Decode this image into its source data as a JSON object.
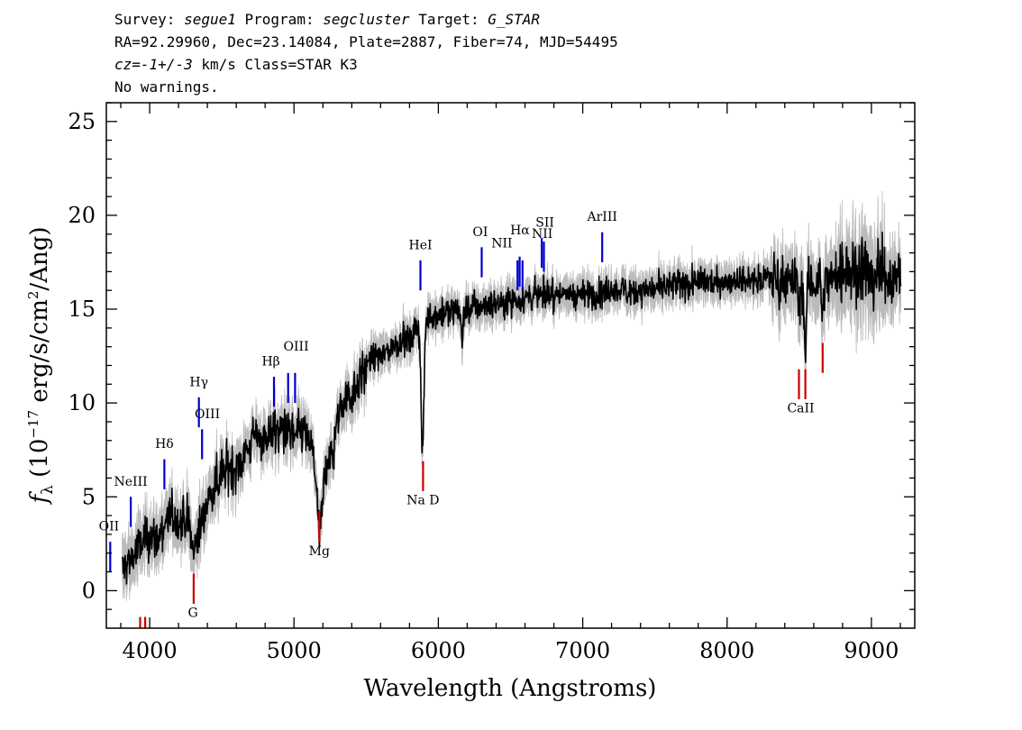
{
  "header": {
    "survey_label": "Survey:",
    "survey": "segue1",
    "program_label": "Program:",
    "program": "segcluster",
    "target_label": "Target:",
    "target": "G_STAR",
    "line2": "RA=92.29960, Dec=23.14084, Plate=2887, Fiber=74, MJD=54495",
    "cz_label": "cz=",
    "cz_value": "-1+/-3",
    "cz_rest": " km/s Class=STAR K3",
    "line4": "No warnings."
  },
  "chart_data": {
    "type": "line",
    "xlabel": "Wavelength (Angstroms)",
    "ylabel": "f_λ (10^-17 erg/s/cm^2/Ang)",
    "ylabel_parts": {
      "f": "f",
      "sub": "λ",
      "pre": " (10",
      "exp1": "−17",
      "mid": " erg/s/cm",
      "exp2": "2",
      "post": "/Ang)"
    },
    "xlim": [
      3700,
      9300
    ],
    "ylim": [
      -2,
      26
    ],
    "xticks": [
      4000,
      5000,
      6000,
      7000,
      8000,
      9000
    ],
    "yticks": [
      0,
      5,
      10,
      15,
      20,
      25
    ],
    "colors": {
      "flux": "#000000",
      "error": "#bbbbbb",
      "emission": "#0000cc",
      "absorption": "#cc0000"
    },
    "continuum": [
      [
        3800,
        1.0
      ],
      [
        3850,
        1.5
      ],
      [
        3900,
        2.0
      ],
      [
        3950,
        2.5
      ],
      [
        4000,
        3.0
      ],
      [
        4050,
        2.6
      ],
      [
        4100,
        3.5
      ],
      [
        4150,
        4.0
      ],
      [
        4200,
        3.6
      ],
      [
        4250,
        3.8
      ],
      [
        4300,
        3.0
      ],
      [
        4350,
        3.3
      ],
      [
        4400,
        4.8
      ],
      [
        4450,
        5.6
      ],
      [
        4500,
        6.3
      ],
      [
        4550,
        6.6
      ],
      [
        4600,
        6.6
      ],
      [
        4650,
        7.1
      ],
      [
        4700,
        7.8
      ],
      [
        4750,
        8.3
      ],
      [
        4800,
        8.1
      ],
      [
        4850,
        8.5
      ],
      [
        4900,
        8.6
      ],
      [
        4950,
        8.5
      ],
      [
        5000,
        8.2
      ],
      [
        5050,
        8.6
      ],
      [
        5100,
        8.1
      ],
      [
        5150,
        6.8
      ],
      [
        5200,
        5.6
      ],
      [
        5250,
        7.5
      ],
      [
        5300,
        9.0
      ],
      [
        5350,
        10.2
      ],
      [
        5400,
        10.5
      ],
      [
        5450,
        11.3
      ],
      [
        5500,
        12.0
      ],
      [
        5550,
        12.3
      ],
      [
        5600,
        12.6
      ],
      [
        5650,
        12.8
      ],
      [
        5700,
        13.0
      ],
      [
        5750,
        13.5
      ],
      [
        5800,
        13.2
      ],
      [
        5850,
        14.0
      ],
      [
        5900,
        14.5
      ],
      [
        5950,
        14.6
      ],
      [
        6000,
        14.7
      ],
      [
        6100,
        14.9
      ],
      [
        6200,
        15.0
      ],
      [
        6300,
        15.2
      ],
      [
        6400,
        15.3
      ],
      [
        6500,
        15.5
      ],
      [
        6600,
        15.6
      ],
      [
        6700,
        15.8
      ],
      [
        6800,
        15.8
      ],
      [
        6900,
        15.8
      ],
      [
        7000,
        15.8
      ],
      [
        7100,
        15.8
      ],
      [
        7200,
        16.0
      ],
      [
        7300,
        16.0
      ],
      [
        7400,
        16.0
      ],
      [
        7500,
        16.1
      ],
      [
        7600,
        16.2
      ],
      [
        7700,
        16.3
      ],
      [
        7800,
        16.4
      ],
      [
        7900,
        16.5
      ],
      [
        8000,
        16.5
      ],
      [
        8100,
        16.6
      ],
      [
        8200,
        16.6
      ],
      [
        8300,
        16.7
      ],
      [
        8400,
        16.6
      ],
      [
        8500,
        16.3
      ],
      [
        8600,
        16.4
      ],
      [
        8700,
        16.6
      ],
      [
        8800,
        17.0
      ],
      [
        8900,
        17.2
      ],
      [
        9000,
        17.0
      ],
      [
        9100,
        16.8
      ],
      [
        9200,
        16.8
      ]
    ],
    "absorption_dips": [
      {
        "x": 5890,
        "depth": 7.0,
        "width": 14
      },
      {
        "x": 5175,
        "depth": 3.0,
        "width": 22
      },
      {
        "x": 8542,
        "depth": 3.6,
        "width": 10
      },
      {
        "x": 8498,
        "depth": 1.5,
        "width": 8
      },
      {
        "x": 8662,
        "depth": 2.0,
        "width": 10
      },
      {
        "x": 4305,
        "depth": 1.0,
        "width": 18
      },
      {
        "x": 6165,
        "depth": 1.8,
        "width": 8
      },
      {
        "x": 5270,
        "depth": 1.2,
        "width": 10
      }
    ],
    "emission_lines": [
      {
        "label": "OII",
        "x": 3727,
        "y0": 1.0,
        "y1": 2.6,
        "lx": 3718,
        "ly": 3.2
      },
      {
        "label": "NeIII",
        "x": 3869,
        "y0": 3.4,
        "y1": 5.0,
        "lx": 3869,
        "ly": 5.6
      },
      {
        "label": "Hδ",
        "x": 4102,
        "y0": 5.4,
        "y1": 7.0,
        "lx": 4102,
        "ly": 7.6
      },
      {
        "label": "Hγ",
        "x": 4341,
        "y0": 8.7,
        "y1": 10.3,
        "lx": 4341,
        "ly": 10.9
      },
      {
        "label": "OIII",
        "x": 4363,
        "y0": 7.0,
        "y1": 8.6,
        "lx": 4400,
        "ly": 9.2
      },
      {
        "label": "Hβ",
        "x": 4861,
        "y0": 9.8,
        "y1": 11.4,
        "lx": 4840,
        "ly": 12.0
      },
      {
        "label": "OIII",
        "x": 4959,
        "y0": 10.0,
        "y1": 11.6,
        "lx": 5015,
        "ly": 12.8
      },
      {
        "label": "OIII",
        "x": 5007,
        "y0": 10.0,
        "y1": 11.6,
        "lx": null,
        "ly": null
      },
      {
        "label": "HeI",
        "x": 5876,
        "y0": 16.0,
        "y1": 17.6,
        "lx": 5876,
        "ly": 18.2
      },
      {
        "label": "OI",
        "x": 6300,
        "y0": 16.7,
        "y1": 18.3,
        "lx": 6290,
        "ly": 18.9
      },
      {
        "label": "NII",
        "x": 6548,
        "y0": 16.0,
        "y1": 17.6,
        "lx": 6440,
        "ly": 18.3
      },
      {
        "label": "Hα",
        "x": 6563,
        "y0": 16.2,
        "y1": 17.8,
        "lx": 6565,
        "ly": 19.0
      },
      {
        "label": "NII",
        "x": 6583,
        "y0": 16.0,
        "y1": 17.6,
        "lx": null,
        "ly": null
      },
      {
        "label": "SII",
        "x": 6716,
        "y0": 17.2,
        "y1": 18.8,
        "lx": 6738,
        "ly": 19.4
      },
      {
        "label": "NII",
        "x": 6731,
        "y0": 17.0,
        "y1": 18.6,
        "lx": 6720,
        "ly": 18.8
      },
      {
        "label": "ArIII",
        "x": 7135,
        "y0": 17.5,
        "y1": 19.1,
        "lx": 7135,
        "ly": 19.7
      }
    ],
    "absorption_lines": [
      {
        "label": "",
        "x": 3934,
        "y0": -2.5,
        "y1": -1.4,
        "lx": null,
        "ly": null
      },
      {
        "label": "",
        "x": 3969,
        "y0": -2.5,
        "y1": -1.4,
        "lx": null,
        "ly": null
      },
      {
        "label": "G",
        "x": 4305,
        "y0": -0.7,
        "y1": 0.9,
        "lx": 4300,
        "ly": -1.4
      },
      {
        "label": "Mg",
        "x": 5175,
        "y0": 2.6,
        "y1": 4.2,
        "lx": 5175,
        "ly": 1.9
      },
      {
        "label": "Na D",
        "x": 5894,
        "y0": 5.3,
        "y1": 6.9,
        "lx": 5894,
        "ly": 4.6
      },
      {
        "label": "CaII",
        "x": 8498,
        "y0": 10.2,
        "y1": 11.8,
        "lx": 8510,
        "ly": 9.5
      },
      {
        "label": "",
        "x": 8542,
        "y0": 10.2,
        "y1": 11.8,
        "lx": null,
        "ly": null
      },
      {
        "label": "",
        "x": 8662,
        "y0": 11.6,
        "y1": 13.2,
        "lx": null,
        "ly": null
      }
    ]
  }
}
